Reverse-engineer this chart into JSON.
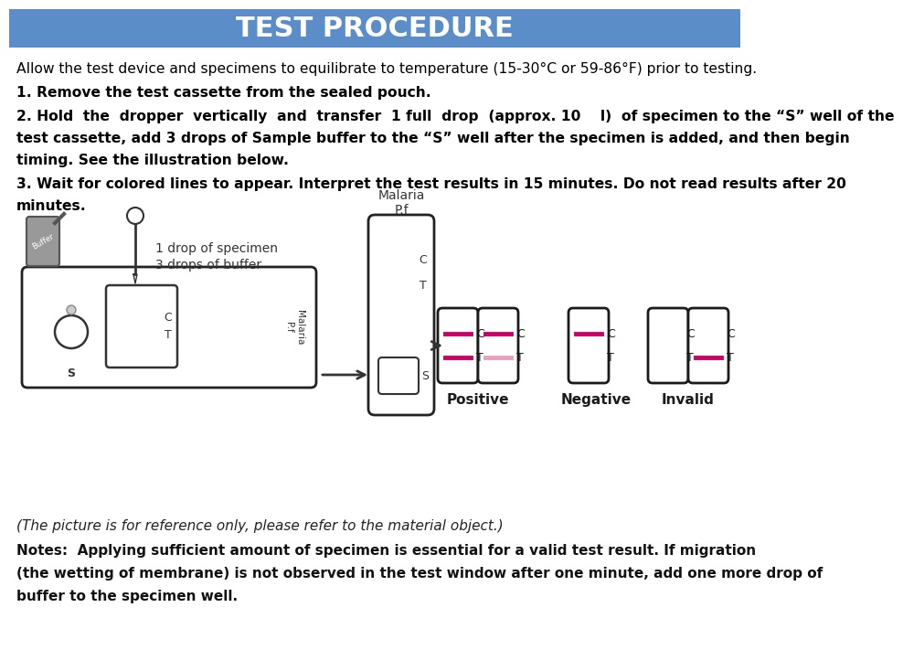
{
  "title": "TEST PROCEDURE",
  "title_bg": "#5b8dc8",
  "title_color": "#ffffff",
  "title_fontsize": 22,
  "bg_color": "#ffffff",
  "text_color": "#000000",
  "line0": "Allow the test device and specimens to equilibrate to temperature (15-30°C or 59-86°F) prior to testing.",
  "step1": "1. Remove the test cassette from the sealed pouch.",
  "step2a": "2. Hold  the  dropper  vertically  and  transfer  1 full  drop  (approx. 10    l)  of specimen to the “S” well of the",
  "step2b": "test cassette, add 3 drops of Sample buffer to the “S” well after the specimen is added, and then begin",
  "step2c": "timing. See the illustration below.",
  "step3": "3. Wait for colored lines to appear. Interpret the test results in 15 minutes. Do not read results after 20",
  "step3b": "minutes.",
  "drop_label1": "1 drop of specimen",
  "drop_label2": "3 drops of buffer",
  "malaria_label": "Malaria\nP.f",
  "positive_label": "Positive",
  "negative_label": "Negative",
  "invalid_label": "Invalid",
  "note1": "(The picture is for reference only, please refer to the material object.)",
  "note2": "Notes:  Applying sufficient amount of specimen is essential for a valid test result. If migration",
  "note3": "(the wetting of membrane) is not observed in the test window after one minute, add one more drop of",
  "note4": "buffer to the specimen well.",
  "pink_color": "#cc0066",
  "light_pink_color": "#e8a0c0",
  "box_outline": "#1a1a1a",
  "arrow_color": "#333333"
}
